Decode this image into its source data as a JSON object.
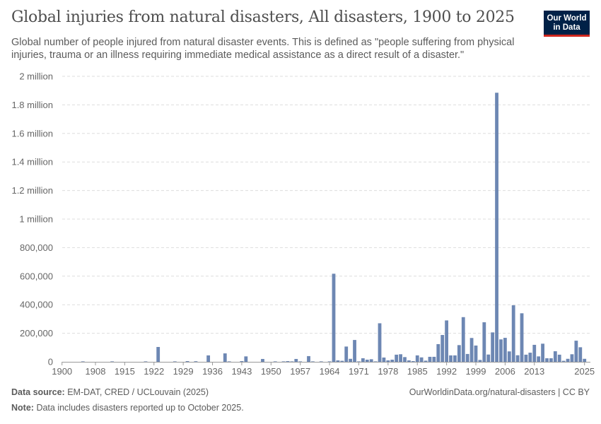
{
  "header": {
    "title": "Global injuries from natural disasters, All disasters, 1900 to 2025",
    "subtitle": "Global number of people injured from natural disaster events. This is defined as \"people suffering from physical injuries, trauma or an illness requiring immediate medical assistance as a direct result of a disaster.\"",
    "logo_line1": "Our World",
    "logo_line2": "in Data"
  },
  "footer": {
    "source_label": "Data source:",
    "source": "EM-DAT, CRED / UCLouvain (2025)",
    "note_label": "Note:",
    "note": "Data includes disasters reported up to October 2025.",
    "link": "OurWorldinData.org/natural-disasters | CC BY"
  },
  "colors": {
    "bar": "#6d87b3",
    "grid": "#dddddd",
    "axis": "#999999"
  },
  "chart_data": {
    "type": "bar",
    "title": "Global injuries from natural disasters, All disasters, 1900 to 2025",
    "xlabel": "",
    "ylabel": "",
    "ylim": [
      0,
      2000000
    ],
    "xlim": [
      1900,
      2025
    ],
    "grid": "horizontal dashed",
    "y_ticks": [
      0,
      200000,
      400000,
      600000,
      800000,
      1000000,
      1200000,
      1400000,
      1600000,
      1800000,
      2000000
    ],
    "y_tick_labels": [
      "0",
      "200,000",
      "400,000",
      "600,000",
      "800,000",
      "1 million",
      "1.2 million",
      "1.4 million",
      "1.6 million",
      "1.8 million",
      "2 million"
    ],
    "x_ticks": [
      1900,
      1908,
      1915,
      1922,
      1929,
      1936,
      1943,
      1950,
      1957,
      1964,
      1971,
      1978,
      1985,
      1992,
      1999,
      2006,
      2013,
      2025
    ],
    "x_tick_labels": [
      "1900",
      "1908",
      "1915",
      "1922",
      "1929",
      "1936",
      "1943",
      "1950",
      "1957",
      "1964",
      "1971",
      "1978",
      "1985",
      "1992",
      "1999",
      "2006",
      "2013",
      "2025"
    ],
    "years": [
      1905,
      1912,
      1920,
      1923,
      1927,
      1930,
      1932,
      1935,
      1939,
      1940,
      1943,
      1944,
      1948,
      1951,
      1953,
      1954,
      1955,
      1956,
      1957,
      1959,
      1960,
      1962,
      1964,
      1965,
      1966,
      1967,
      1968,
      1969,
      1970,
      1971,
      1972,
      1973,
      1974,
      1975,
      1976,
      1977,
      1978,
      1979,
      1980,
      1981,
      1982,
      1983,
      1984,
      1985,
      1986,
      1987,
      1988,
      1989,
      1990,
      1991,
      1992,
      1993,
      1994,
      1995,
      1996,
      1997,
      1998,
      1999,
      2000,
      2001,
      2002,
      2003,
      2004,
      2005,
      2006,
      2007,
      2008,
      2009,
      2010,
      2011,
      2012,
      2013,
      2014,
      2015,
      2016,
      2017,
      2018,
      2019,
      2020,
      2021,
      2022,
      2023,
      2024,
      2025
    ],
    "values": [
      1000,
      1000,
      1000,
      104000,
      1500,
      5000,
      4000,
      45000,
      59000,
      2000,
      5000,
      38000,
      20000,
      2000,
      3000,
      5000,
      3000,
      20000,
      3000,
      40000,
      3000,
      3000,
      3000,
      617000,
      10000,
      7000,
      107000,
      21000,
      153000,
      3000,
      25000,
      15000,
      18000,
      3000,
      270000,
      30000,
      10000,
      15000,
      50000,
      53000,
      33000,
      10000,
      5000,
      45000,
      31000,
      8000,
      35000,
      35000,
      124000,
      188000,
      290000,
      45000,
      45000,
      117000,
      313000,
      55000,
      167000,
      114000,
      13000,
      277000,
      51000,
      206000,
      1885000,
      157000,
      168000,
      73000,
      396000,
      46000,
      340000,
      50000,
      64000,
      119000,
      38000,
      127000,
      25000,
      25000,
      74000,
      50000,
      7000,
      21000,
      53000,
      148000,
      102000,
      21000
    ]
  }
}
